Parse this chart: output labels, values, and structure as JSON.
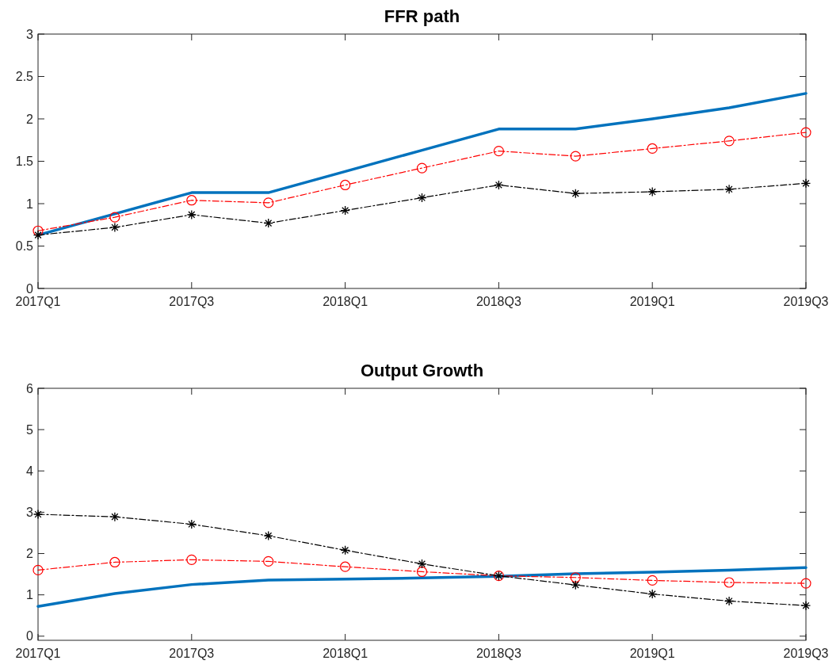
{
  "chart_data": [
    {
      "type": "line",
      "title": "FFR path",
      "categories": [
        "2017Q1",
        null,
        "2017Q3",
        null,
        "2018Q1",
        null,
        "2018Q3",
        null,
        "2019Q1",
        null,
        "2019Q3"
      ],
      "ylim": [
        0,
        3
      ],
      "yticks": [
        0,
        0.5,
        1,
        1.5,
        2,
        2.5,
        3
      ],
      "grid": false,
      "series": [
        {
          "color": "#0072bd",
          "marker": "none",
          "line_style": "solid",
          "values": [
            0.63,
            0.88,
            1.13,
            1.13,
            1.38,
            1.63,
            1.88,
            1.88,
            2.0,
            2.13,
            2.3
          ]
        },
        {
          "color": "#ff0000",
          "marker": "circle",
          "line_style": "dashed",
          "values": [
            0.68,
            0.84,
            1.04,
            1.01,
            1.22,
            1.42,
            1.62,
            1.56,
            1.65,
            1.74,
            1.84
          ]
        },
        {
          "color": "#000000",
          "marker": "cross",
          "line_style": "dashed",
          "values": [
            0.63,
            0.72,
            0.87,
            0.77,
            0.92,
            1.07,
            1.22,
            1.12,
            1.14,
            1.17,
            1.24
          ]
        }
      ]
    },
    {
      "type": "line",
      "title": "Output Growth",
      "categories": [
        "2017Q1",
        null,
        "2017Q3",
        null,
        "2018Q1",
        null,
        "2018Q3",
        null,
        "2019Q1",
        null,
        "2019Q3"
      ],
      "ylim": [
        -0.1,
        6
      ],
      "yticks": [
        0,
        1,
        2,
        3,
        4,
        5,
        6
      ],
      "grid": false,
      "series": [
        {
          "color": "#0072bd",
          "marker": "none",
          "line_style": "solid",
          "values": [
            0.72,
            1.03,
            1.25,
            1.36,
            1.38,
            1.41,
            1.45,
            1.51,
            1.55,
            1.6,
            1.66
          ]
        },
        {
          "color": "#ff0000",
          "marker": "circle",
          "line_style": "dashed",
          "values": [
            1.6,
            1.79,
            1.85,
            1.81,
            1.68,
            1.56,
            1.46,
            1.42,
            1.35,
            1.3,
            1.28
          ]
        },
        {
          "color": "#000000",
          "marker": "cross",
          "line_style": "dashed",
          "values": [
            2.95,
            2.89,
            2.71,
            2.43,
            2.08,
            1.75,
            1.46,
            1.24,
            1.02,
            0.85,
            0.74
          ]
        }
      ]
    }
  ]
}
